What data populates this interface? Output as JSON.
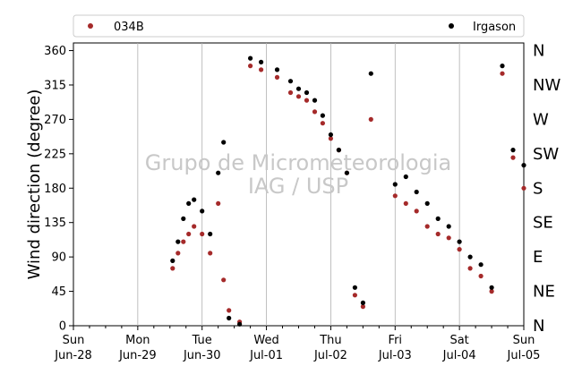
{
  "chart_data": {
    "type": "scatter",
    "title": "",
    "ylabel": "Wind direction (degree)",
    "xlabel": "",
    "ylim": [
      0,
      370
    ],
    "xlim": [
      "2020-06-28",
      "2020-07-05"
    ],
    "yticks": [
      0,
      45,
      90,
      135,
      180,
      225,
      270,
      315,
      360
    ],
    "x_tick_labels": [
      {
        "day": "Sun",
        "date": "Jun-28"
      },
      {
        "day": "Mon",
        "date": "Jun-29"
      },
      {
        "day": "Tue",
        "date": "Jun-30"
      },
      {
        "day": "Wed",
        "date": "Jul-01"
      },
      {
        "day": "Thu",
        "date": "Jul-02"
      },
      {
        "day": "Fri",
        "date": "Jul-03"
      },
      {
        "day": "Sat",
        "date": "Jul-04"
      },
      {
        "day": "Sun",
        "date": "Jul-05"
      }
    ],
    "compass_labels": [
      "N",
      "NE",
      "E",
      "SE",
      "S",
      "SW",
      "W",
      "NW",
      "N"
    ],
    "grid": "vertical",
    "legend_position": "top",
    "watermark": [
      "Grupo de Micrometeorologia",
      "IAG / USP"
    ],
    "series": [
      {
        "name": "034B",
        "color": "#a52a2a",
        "values": [
          [
            "2020-06-29 13:00",
            75
          ],
          [
            "2020-06-29 15:00",
            95
          ],
          [
            "2020-06-29 17:00",
            110
          ],
          [
            "2020-06-29 19:00",
            120
          ],
          [
            "2020-06-29 21:00",
            130
          ],
          [
            "2020-06-30 00:00",
            120
          ],
          [
            "2020-06-30 03:00",
            95
          ],
          [
            "2020-06-30 06:00",
            160
          ],
          [
            "2020-06-30 08:00",
            60
          ],
          [
            "2020-06-30 10:00",
            20
          ],
          [
            "2020-06-30 14:00",
            5
          ],
          [
            "2020-06-30 18:00",
            340
          ],
          [
            "2020-06-30 22:00",
            335
          ],
          [
            "2020-07-01 04:00",
            325
          ],
          [
            "2020-07-01 09:00",
            305
          ],
          [
            "2020-07-01 12:00",
            300
          ],
          [
            "2020-07-01 15:00",
            295
          ],
          [
            "2020-07-01 18:00",
            280
          ],
          [
            "2020-07-01 21:00",
            265
          ],
          [
            "2020-07-02 00:00",
            245
          ],
          [
            "2020-07-02 03:00",
            230
          ],
          [
            "2020-07-02 06:00",
            200
          ],
          [
            "2020-07-02 09:00",
            40
          ],
          [
            "2020-07-02 12:00",
            25
          ],
          [
            "2020-07-02 15:00",
            270
          ],
          [
            "2020-07-03 00:00",
            170
          ],
          [
            "2020-07-03 04:00",
            160
          ],
          [
            "2020-07-03 08:00",
            150
          ],
          [
            "2020-07-03 12:00",
            130
          ],
          [
            "2020-07-03 16:00",
            120
          ],
          [
            "2020-07-03 20:00",
            115
          ],
          [
            "2020-07-04 00:00",
            100
          ],
          [
            "2020-07-04 04:00",
            75
          ],
          [
            "2020-07-04 08:00",
            65
          ],
          [
            "2020-07-04 12:00",
            45
          ],
          [
            "2020-07-04 16:00",
            330
          ],
          [
            "2020-07-04 20:00",
            220
          ],
          [
            "2020-07-05 00:00",
            180
          ]
        ]
      },
      {
        "name": "Irgason",
        "color": "#000000",
        "values": [
          [
            "2020-06-29 13:00",
            85
          ],
          [
            "2020-06-29 15:00",
            110
          ],
          [
            "2020-06-29 17:00",
            140
          ],
          [
            "2020-06-29 19:00",
            160
          ],
          [
            "2020-06-29 21:00",
            165
          ],
          [
            "2020-06-30 00:00",
            150
          ],
          [
            "2020-06-30 03:00",
            120
          ],
          [
            "2020-06-30 06:00",
            200
          ],
          [
            "2020-06-30 08:00",
            240
          ],
          [
            "2020-06-30 10:00",
            10
          ],
          [
            "2020-06-30 14:00",
            2
          ],
          [
            "2020-06-30 18:00",
            350
          ],
          [
            "2020-06-30 22:00",
            345
          ],
          [
            "2020-07-01 04:00",
            335
          ],
          [
            "2020-07-01 09:00",
            320
          ],
          [
            "2020-07-01 12:00",
            310
          ],
          [
            "2020-07-01 15:00",
            305
          ],
          [
            "2020-07-01 18:00",
            295
          ],
          [
            "2020-07-01 21:00",
            275
          ],
          [
            "2020-07-02 00:00",
            250
          ],
          [
            "2020-07-02 03:00",
            230
          ],
          [
            "2020-07-02 06:00",
            200
          ],
          [
            "2020-07-02 09:00",
            50
          ],
          [
            "2020-07-02 12:00",
            30
          ],
          [
            "2020-07-02 15:00",
            330
          ],
          [
            "2020-07-03 00:00",
            185
          ],
          [
            "2020-07-03 04:00",
            195
          ],
          [
            "2020-07-03 08:00",
            175
          ],
          [
            "2020-07-03 12:00",
            160
          ],
          [
            "2020-07-03 16:00",
            140
          ],
          [
            "2020-07-03 20:00",
            130
          ],
          [
            "2020-07-04 00:00",
            110
          ],
          [
            "2020-07-04 04:00",
            90
          ],
          [
            "2020-07-04 08:00",
            80
          ],
          [
            "2020-07-04 12:00",
            50
          ],
          [
            "2020-07-04 16:00",
            340
          ],
          [
            "2020-07-04 20:00",
            230
          ],
          [
            "2020-07-05 00:00",
            210
          ]
        ]
      }
    ]
  }
}
